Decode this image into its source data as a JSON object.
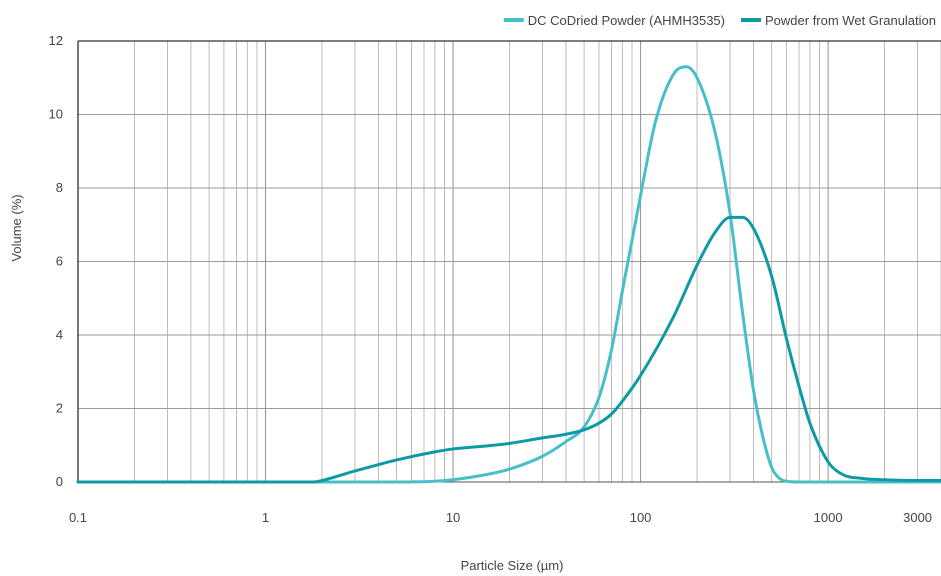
{
  "chart_data": {
    "type": "line",
    "xscale": "log",
    "xlim": [
      0.1,
      4000
    ],
    "ylim": [
      0,
      12
    ],
    "xticks": [
      {
        "value": 0.1,
        "label": "0.1"
      },
      {
        "value": 1,
        "label": "1"
      },
      {
        "value": 10,
        "label": "10"
      },
      {
        "value": 100,
        "label": "100"
      },
      {
        "value": 1000,
        "label": "1000"
      },
      {
        "value": 3000,
        "label": "3000"
      }
    ],
    "yticks": [
      {
        "value": 0,
        "label": "0"
      },
      {
        "value": 2,
        "label": "2"
      },
      {
        "value": 4,
        "label": "4"
      },
      {
        "value": 6,
        "label": "6"
      },
      {
        "value": 8,
        "label": "8"
      },
      {
        "value": 10,
        "label": "10"
      },
      {
        "value": 12,
        "label": "12"
      }
    ],
    "xlabel": "Particle Size (µm)",
    "ylabel": "Volume (%)",
    "grid": true,
    "legend_position": "top-right",
    "series": [
      {
        "name": "DC CoDried Powder (AHMH3535)",
        "color": "#47bfc9",
        "x": [
          0.1,
          1,
          5,
          8,
          10,
          15,
          20,
          30,
          40,
          50,
          60,
          70,
          80,
          100,
          120,
          150,
          175,
          200,
          250,
          300,
          350,
          400,
          450,
          500,
          550,
          600,
          700,
          1000,
          2000,
          4000
        ],
        "y": [
          0,
          0,
          0,
          0.02,
          0.06,
          0.2,
          0.35,
          0.7,
          1.1,
          1.5,
          2.3,
          3.6,
          5.2,
          7.8,
          9.8,
          11.1,
          11.3,
          11.0,
          9.5,
          7.3,
          4.6,
          2.5,
          1.2,
          0.4,
          0.1,
          0.02,
          0,
          0,
          0,
          0
        ]
      },
      {
        "name": "Powder from Wet Granulation",
        "color": "#0e9aa5",
        "x": [
          0.1,
          1,
          1.8,
          2,
          3,
          5,
          8,
          10,
          15,
          20,
          30,
          40,
          50,
          60,
          70,
          80,
          100,
          150,
          200,
          250,
          300,
          350,
          400,
          500,
          600,
          700,
          800,
          1000,
          1200,
          1500,
          2000,
          3000,
          4000
        ],
        "y": [
          0,
          0,
          0,
          0.04,
          0.3,
          0.6,
          0.82,
          0.9,
          0.98,
          1.05,
          1.2,
          1.3,
          1.42,
          1.6,
          1.85,
          2.2,
          2.9,
          4.5,
          5.9,
          6.8,
          7.2,
          7.2,
          6.9,
          5.6,
          3.9,
          2.6,
          1.6,
          0.55,
          0.2,
          0.1,
          0.06,
          0.04,
          0.04
        ]
      }
    ]
  }
}
